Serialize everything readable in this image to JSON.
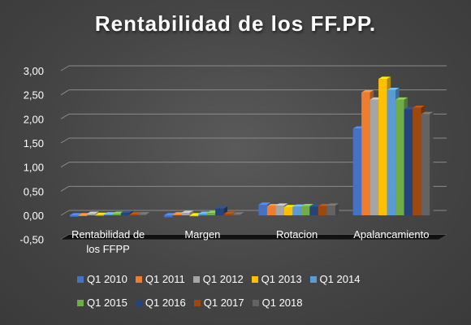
{
  "chart_data": {
    "type": "bar",
    "title": "Rentabilidad de los FF.PP.",
    "categories": [
      "Rentabilidad de los FFPP",
      "Margen",
      "Rotacion",
      "Apalancamiento"
    ],
    "category_lines": [
      [
        "Rentabilidad de",
        "los FFPP"
      ],
      [
        "Margen"
      ],
      [
        "Rotacion"
      ],
      [
        "Apalancamiento"
      ]
    ],
    "ylim": [
      -0.5,
      3.0
    ],
    "y_ticks": [
      "-0,50",
      "0,00",
      "0,50",
      "1,00",
      "1,50",
      "2,00",
      "2,50",
      "3,00"
    ],
    "grid": true,
    "legend_position": "bottom",
    "series": [
      {
        "name": "Q1 2010",
        "color": "#4472c4",
        "values": [
          -0.03,
          -0.04,
          0.22,
          1.8
        ]
      },
      {
        "name": "Q1 2011",
        "color": "#ed7d31",
        "values": [
          -0.01,
          0.02,
          0.19,
          2.55
        ]
      },
      {
        "name": "Q1 2012",
        "color": "#a5a5a5",
        "values": [
          0.03,
          0.05,
          0.2,
          2.4
        ]
      },
      {
        "name": "Q1 2013",
        "color": "#ffc000",
        "values": [
          0.01,
          -0.02,
          0.17,
          2.83
        ]
      },
      {
        "name": "Q1 2014",
        "color": "#5b9bd5",
        "values": [
          0.02,
          0.03,
          0.18,
          2.6
        ]
      },
      {
        "name": "Q1 2015",
        "color": "#70ad47",
        "values": [
          0.03,
          0.05,
          0.19,
          2.4
        ]
      },
      {
        "name": "Q1 2016",
        "color": "#264478",
        "values": [
          0.05,
          0.14,
          0.18,
          2.2
        ]
      },
      {
        "name": "Q1 2017",
        "color": "#9e480e",
        "values": [
          0.02,
          0.03,
          0.19,
          2.23
        ]
      },
      {
        "name": "Q1 2018",
        "color": "#636363",
        "values": [
          0.02,
          0.02,
          0.2,
          2.1
        ]
      }
    ]
  }
}
